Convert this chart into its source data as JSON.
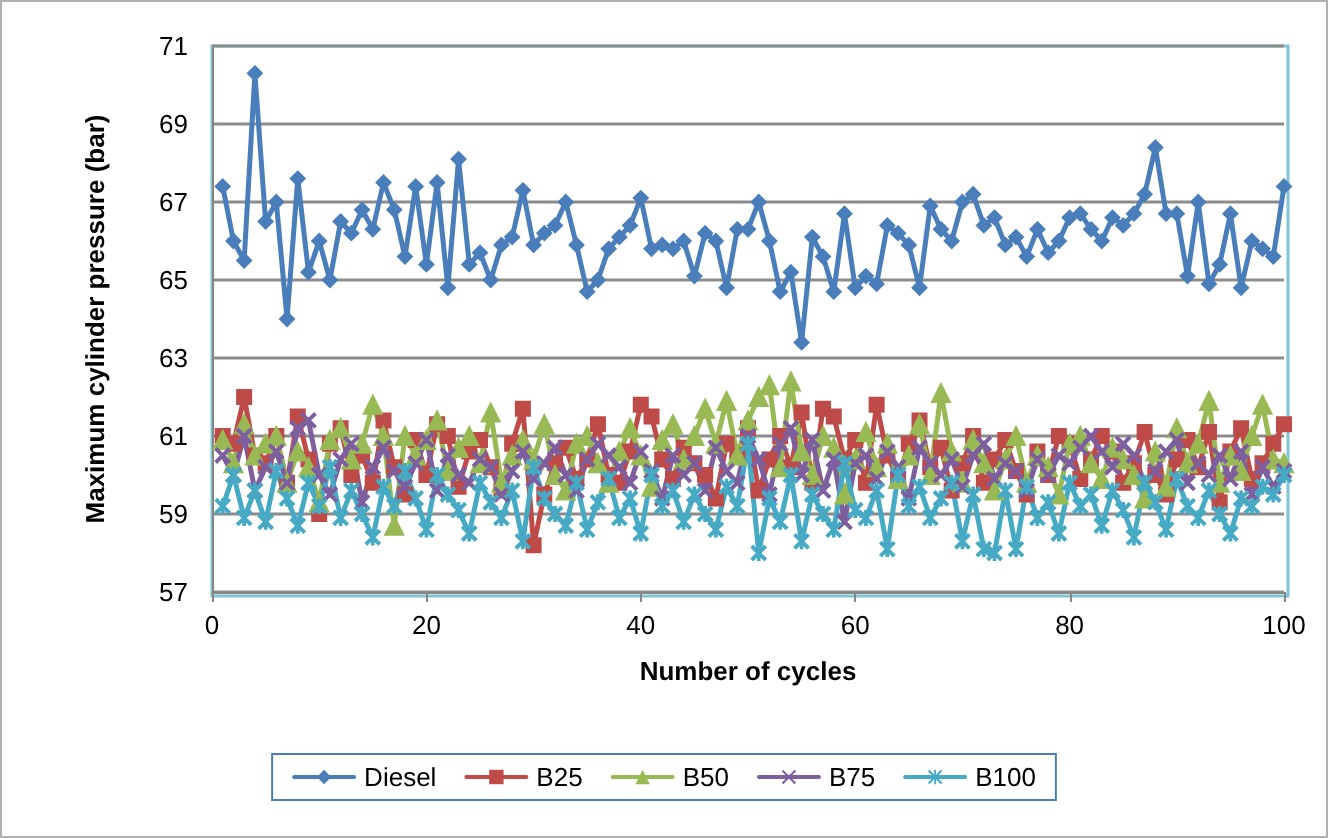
{
  "chart_data": {
    "type": "line",
    "xlabel": "Number of cycles",
    "ylabel": "Maximum cylinder pressure (bar)",
    "xlim": [
      0,
      100
    ],
    "xticks": [
      0,
      20,
      40,
      60,
      80,
      100
    ],
    "ylim": [
      57,
      71
    ],
    "yticks": [
      57,
      59,
      61,
      63,
      65,
      67,
      69,
      71
    ],
    "grid": "y",
    "legend": "bottom",
    "line_style": "solid",
    "x": [
      1,
      2,
      3,
      4,
      5,
      6,
      7,
      8,
      9,
      10,
      11,
      12,
      13,
      14,
      15,
      16,
      17,
      18,
      19,
      20,
      21,
      22,
      23,
      24,
      25,
      26,
      27,
      28,
      29,
      30,
      31,
      32,
      33,
      34,
      35,
      36,
      37,
      38,
      39,
      40,
      41,
      42,
      43,
      44,
      45,
      46,
      47,
      48,
      49,
      50,
      51,
      52,
      53,
      54,
      55,
      56,
      57,
      58,
      59,
      60,
      61,
      62,
      63,
      64,
      65,
      66,
      67,
      68,
      69,
      70,
      71,
      72,
      73,
      74,
      75,
      76,
      77,
      78,
      79,
      80,
      81,
      82,
      83,
      84,
      85,
      86,
      87,
      88,
      89,
      90,
      91,
      92,
      93,
      94,
      95,
      96,
      97,
      98,
      99,
      100
    ],
    "series": [
      {
        "name": "Diesel",
        "color": "#4a7ebb",
        "marker": "diamond",
        "values": [
          67.4,
          66.0,
          65.5,
          70.3,
          66.5,
          67.0,
          64.0,
          67.6,
          65.2,
          66.0,
          65.0,
          66.5,
          66.2,
          66.8,
          66.3,
          67.5,
          66.8,
          65.6,
          67.4,
          65.4,
          67.5,
          64.8,
          68.1,
          65.4,
          65.7,
          65.0,
          65.9,
          66.1,
          67.3,
          65.9,
          66.2,
          66.4,
          67.0,
          65.9,
          64.7,
          65.0,
          65.8,
          66.1,
          66.4,
          67.1,
          65.8,
          65.9,
          65.8,
          66.0,
          65.1,
          66.2,
          66.0,
          64.8,
          66.3,
          66.3,
          67.0,
          66.0,
          64.7,
          65.2,
          63.4,
          66.1,
          65.6,
          64.7,
          66.7,
          64.8,
          65.1,
          64.9,
          66.4,
          66.2,
          65.9,
          64.8,
          66.9,
          66.3,
          66.0,
          67.0,
          67.2,
          66.4,
          66.6,
          65.9,
          66.1,
          65.6,
          66.3,
          65.7,
          66.0,
          66.6,
          66.7,
          66.3,
          66.0,
          66.6,
          66.4,
          66.7,
          67.2,
          68.4,
          66.7,
          66.7,
          65.1,
          67.0,
          64.9,
          65.4,
          66.7,
          64.8,
          66.0,
          65.8,
          65.6,
          67.4
        ]
      },
      {
        "name": "B25",
        "color": "#be4b48",
        "marker": "square",
        "values": [
          61.0,
          60.8,
          62.0,
          60.5,
          60.3,
          61.0,
          59.8,
          61.5,
          60.4,
          59.0,
          60.8,
          61.2,
          60.0,
          60.5,
          59.8,
          61.4,
          60.2,
          59.5,
          60.9,
          60.0,
          61.3,
          61.0,
          59.7,
          60.6,
          60.9,
          60.2,
          59.6,
          60.8,
          61.7,
          58.2,
          59.5,
          60.3,
          60.7,
          59.9,
          60.4,
          61.3,
          60.0,
          59.8,
          60.6,
          61.8,
          61.5,
          60.4,
          59.9,
          60.7,
          60.3,
          60.0,
          59.4,
          60.8,
          60.5,
          61.2,
          59.6,
          60.4,
          61.0,
          60.2,
          61.6,
          59.8,
          61.7,
          61.5,
          60.4,
          60.9,
          59.8,
          61.8,
          60.5,
          59.9,
          60.8,
          61.4,
          60.2,
          60.7,
          59.6,
          60.3,
          61.0,
          59.8,
          60.4,
          60.9,
          60.1,
          59.5,
          60.6,
          60.0,
          61.0,
          60.8,
          59.9,
          60.4,
          61.0,
          60.6,
          59.8,
          60.3,
          61.1,
          60.0,
          59.5,
          60.4,
          60.9,
          60.2,
          61.1,
          59.3,
          60.6,
          61.2,
          59.9,
          60.3,
          60.8,
          61.3
        ]
      },
      {
        "name": "B50",
        "color": "#98b954",
        "marker": "triangle",
        "values": [
          60.9,
          60.3,
          61.3,
          60.5,
          60.8,
          61.0,
          59.8,
          60.6,
          60.2,
          59.3,
          60.9,
          61.2,
          60.4,
          60.8,
          61.8,
          61.0,
          58.7,
          61.0,
          60.5,
          60.9,
          61.4,
          60.1,
          60.7,
          61.0,
          60.3,
          61.6,
          59.8,
          60.5,
          60.9,
          60.4,
          61.3,
          60.0,
          59.6,
          60.8,
          61.0,
          60.3,
          59.8,
          60.6,
          61.2,
          60.5,
          59.7,
          60.9,
          61.3,
          60.4,
          61.0,
          61.7,
          60.8,
          61.9,
          60.5,
          61.4,
          62.0,
          62.3,
          60.2,
          62.4,
          60.6,
          60.0,
          61.0,
          60.7,
          59.5,
          60.4,
          61.1,
          60.2,
          60.8,
          59.9,
          60.5,
          61.3,
          60.0,
          62.1,
          60.6,
          59.8,
          60.9,
          60.3,
          59.6,
          60.4,
          61.0,
          59.8,
          60.5,
          60.2,
          59.5,
          60.8,
          61.0,
          60.3,
          59.9,
          60.7,
          60.4,
          60.0,
          59.4,
          60.6,
          59.7,
          61.2,
          60.3,
          60.8,
          61.9,
          59.8,
          60.5,
          60.1,
          61.0,
          61.8,
          60.4,
          60.3
        ]
      },
      {
        "name": "B75",
        "color": "#7d5fa0",
        "marker": "cross",
        "values": [
          60.5,
          60.0,
          61.0,
          59.6,
          60.2,
          60.6,
          59.8,
          61.2,
          61.4,
          60.0,
          59.5,
          60.4,
          60.8,
          59.3,
          60.2,
          60.7,
          60.1,
          59.7,
          60.3,
          60.9,
          59.6,
          60.5,
          60.0,
          59.8,
          60.4,
          60.2,
          59.5,
          60.1,
          60.6,
          59.9,
          60.3,
          60.7,
          60.0,
          59.6,
          60.4,
          60.8,
          60.5,
          60.2,
          59.8,
          60.6,
          60.1,
          59.4,
          60.5,
          60.0,
          60.3,
          59.6,
          60.7,
          60.1,
          59.8,
          61.0,
          60.4,
          59.5,
          60.8,
          61.2,
          60.0,
          60.9,
          59.6,
          60.4,
          58.8,
          60.3,
          60.5,
          59.9,
          60.6,
          60.2,
          59.4,
          60.7,
          60.3,
          60.0,
          60.4,
          59.7,
          60.5,
          60.8,
          59.9,
          60.3,
          60.1,
          59.6,
          60.4,
          60.0,
          60.5,
          60.3,
          60.7,
          61.0,
          60.6,
          60.2,
          60.8,
          60.5,
          59.8,
          60.1,
          60.6,
          60.9,
          59.8,
          60.3,
          60.0,
          60.5,
          59.9,
          60.6,
          59.5,
          60.2,
          59.7,
          60.1
        ]
      },
      {
        "name": "B100",
        "color": "#46aac5",
        "marker": "star",
        "values": [
          59.2,
          60.0,
          58.9,
          59.6,
          58.8,
          60.1,
          59.4,
          58.7,
          59.8,
          59.2,
          60.2,
          58.9,
          59.6,
          59.0,
          58.4,
          59.7,
          59.2,
          60.1,
          59.4,
          58.6,
          60.0,
          59.5,
          59.1,
          58.5,
          59.8,
          59.3,
          58.9,
          59.6,
          58.3,
          60.2,
          59.4,
          59.0,
          58.7,
          59.8,
          58.6,
          59.3,
          59.9,
          58.9,
          59.4,
          58.5,
          60.0,
          59.2,
          59.6,
          58.8,
          59.5,
          59.0,
          58.6,
          59.7,
          59.2,
          60.8,
          58.0,
          59.4,
          58.8,
          60.0,
          58.3,
          59.5,
          59.0,
          58.6,
          60.3,
          59.1,
          58.9,
          59.6,
          58.1,
          60.0,
          59.2,
          59.7,
          58.9,
          59.4,
          59.8,
          58.3,
          59.5,
          58.1,
          58.0,
          59.6,
          58.1,
          59.7,
          58.9,
          59.3,
          58.5,
          59.8,
          59.2,
          59.5,
          58.7,
          59.6,
          59.1,
          58.4,
          59.8,
          59.3,
          58.6,
          59.9,
          59.2,
          58.9,
          59.6,
          59.0,
          58.5,
          59.4,
          59.2,
          59.7,
          59.5,
          60.0
        ]
      }
    ]
  }
}
